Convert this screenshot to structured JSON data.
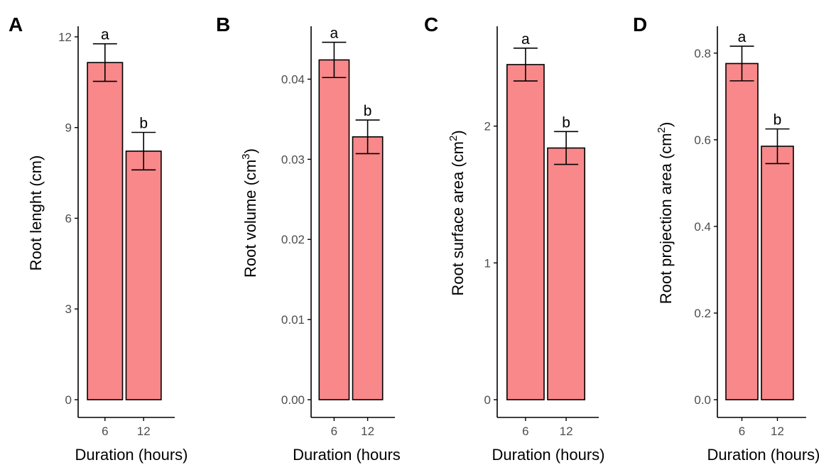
{
  "chart_data": [
    {
      "type": "bar",
      "panel_label": "A",
      "xlabel": "Duration (hours)",
      "ylabel": "Root lenght (cm)",
      "ylabel_superscript": "",
      "ylabel_suffix": "",
      "categories": [
        "6",
        "12"
      ],
      "values": [
        11.15,
        8.22
      ],
      "error": [
        0.62,
        0.62
      ],
      "significance": [
        "a",
        "b"
      ],
      "ylim": [
        0,
        12.35
      ],
      "yticks": [
        0,
        3,
        6,
        9,
        12
      ],
      "ytick_labels": [
        "0",
        "3",
        "6",
        "9",
        "12"
      ]
    },
    {
      "type": "bar",
      "panel_label": "B",
      "xlabel": "Duration (hours",
      "ylabel": "Root volume (cm",
      "ylabel_superscript": "3",
      "ylabel_suffix": ")",
      "categories": [
        "6",
        "12"
      ],
      "values": [
        0.0424,
        0.0328
      ],
      "error": [
        0.0022,
        0.0021
      ],
      "significance": [
        "a",
        "b"
      ],
      "ylim": [
        0,
        0.0466
      ],
      "yticks": [
        0,
        0.01,
        0.02,
        0.03,
        0.04
      ],
      "ytick_labels": [
        "0.00",
        "0.01",
        "0.02",
        "0.03",
        "0.04"
      ]
    },
    {
      "type": "bar",
      "panel_label": "C",
      "xlabel": "Duration (hours)",
      "ylabel": "Root surface area (cm",
      "ylabel_superscript": "2",
      "ylabel_suffix": ")",
      "categories": [
        "6",
        "12"
      ],
      "values": [
        2.45,
        1.84
      ],
      "error": [
        0.12,
        0.12
      ],
      "significance": [
        "a",
        "b"
      ],
      "ylim": [
        0,
        2.73
      ],
      "yticks": [
        0,
        1,
        2
      ],
      "ytick_labels": [
        "0",
        "1",
        "2"
      ]
    },
    {
      "type": "bar",
      "panel_label": "D",
      "xlabel": "Duration (hours)",
      "ylabel": "Root projection area (cm",
      "ylabel_superscript": "2",
      "ylabel_suffix": ")",
      "categories": [
        "6",
        "12"
      ],
      "values": [
        0.776,
        0.585
      ],
      "error": [
        0.04,
        0.04
      ],
      "significance": [
        "a",
        "b"
      ],
      "ylim": [
        0,
        0.862
      ],
      "yticks": [
        0,
        0.2,
        0.4,
        0.6,
        0.8
      ],
      "ytick_labels": [
        "0.0",
        "0.2",
        "0.4",
        "0.6",
        "0.8"
      ]
    }
  ],
  "style": {
    "bar_fill": "#f8888a",
    "bar_stroke": "#000000",
    "tick_label_color": "#4d4d4d",
    "grid": false
  }
}
